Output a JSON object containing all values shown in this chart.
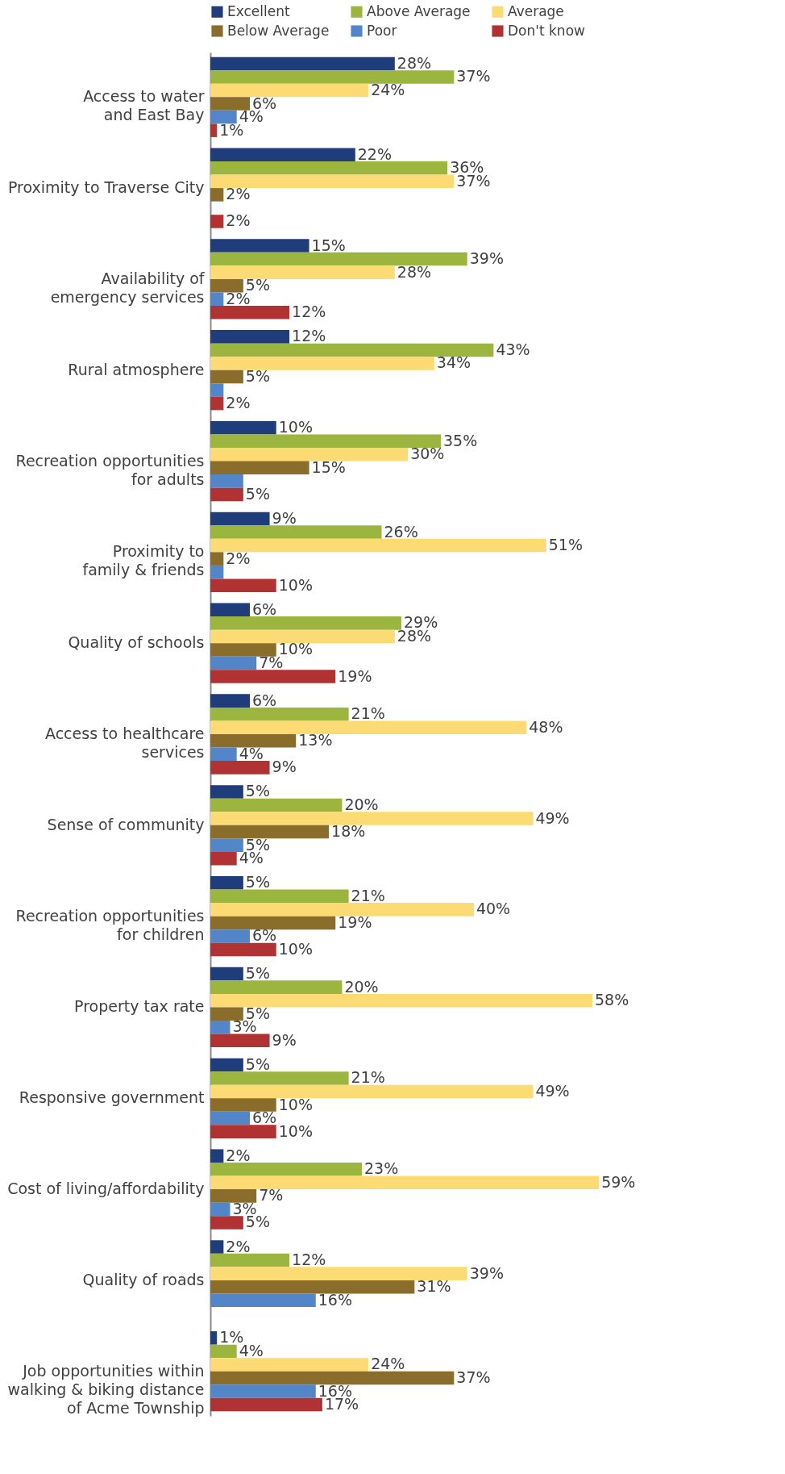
{
  "chart_data": {
    "type": "bar",
    "orientation": "horizontal",
    "legend": "top",
    "categories": [
      "Access to water\nand East Bay",
      "Proximity to Traverse City",
      "Availability of\nemergency services",
      "Rural atmosphere",
      "Recreation opportunities\nfor adults",
      "Proximity to\nfamily & friends",
      "Quality of schools",
      "Access to healthcare\nservices",
      "Sense of community",
      "Recreation opportunities\nfor children",
      "Property tax rate",
      "Responsive government",
      "Cost of living/affordability",
      "Quality of roads",
      "Job opportunities within\nwalking & biking distance\nof Acme Township"
    ],
    "series": [
      {
        "name": "Excellent",
        "color": "#1f3d7a",
        "values": [
          28,
          22,
          15,
          12,
          10,
          9,
          6,
          6,
          5,
          5,
          5,
          5,
          2,
          2,
          1
        ],
        "value_labels": [
          "28%",
          "22%",
          "15%",
          "12%",
          "10%",
          "9%",
          "6%",
          "6%",
          "5%",
          "5%",
          "5%",
          "5%",
          "2%",
          "2%",
          "1%"
        ]
      },
      {
        "name": "Above Average",
        "color": "#9bb53f",
        "values": [
          37,
          36,
          39,
          43,
          35,
          26,
          29,
          21,
          20,
          21,
          20,
          21,
          23,
          12,
          4
        ],
        "value_labels": [
          "37%",
          "36%",
          "39%",
          "43%",
          "35%",
          "26%",
          "29%",
          "21%",
          "20%",
          "21%",
          "20%",
          "21%",
          "23%",
          "12%",
          "4%"
        ]
      },
      {
        "name": "Average",
        "color": "#fcdb74",
        "values": [
          24,
          37,
          28,
          34,
          30,
          51,
          28,
          48,
          49,
          40,
          58,
          49,
          59,
          39,
          24
        ],
        "value_labels": [
          "24%",
          "37%",
          "28%",
          "34%",
          "30%",
          "51%",
          "28%",
          "48%",
          "49%",
          "40%",
          "58%",
          "49%",
          "59%",
          "39%",
          "24%"
        ]
      },
      {
        "name": "Below Average",
        "color": "#8a6d2a",
        "values": [
          6,
          2,
          5,
          5,
          15,
          2,
          10,
          13,
          18,
          19,
          5,
          10,
          7,
          31,
          37
        ],
        "value_labels": [
          "6%",
          "2%",
          "5%",
          "5%",
          "15%",
          "2%",
          "10%",
          "13%",
          "18%",
          "19%",
          "5%",
          "10%",
          "7%",
          "31%",
          "37%"
        ]
      },
      {
        "name": "Poor",
        "color": "#5386c8",
        "values": [
          4,
          null,
          2,
          2,
          5,
          2,
          7,
          4,
          5,
          6,
          3,
          6,
          3,
          16,
          16
        ],
        "value_labels": [
          "4%",
          null,
          "2%",
          null,
          null,
          null,
          "7%",
          "4%",
          "5%",
          "6%",
          "3%",
          "6%",
          "3%",
          "16%",
          "16%"
        ]
      },
      {
        "name": "Don't know",
        "color": "#b03232",
        "values": [
          1,
          2,
          12,
          2,
          5,
          10,
          19,
          9,
          4,
          10,
          9,
          10,
          5,
          null,
          17
        ],
        "value_labels": [
          "1%",
          "2%",
          "12%",
          "2%",
          "5%",
          "10%",
          "19%",
          "9%",
          "4%",
          "10%",
          "9%",
          "10%",
          "5%",
          null,
          "17%"
        ]
      }
    ]
  }
}
